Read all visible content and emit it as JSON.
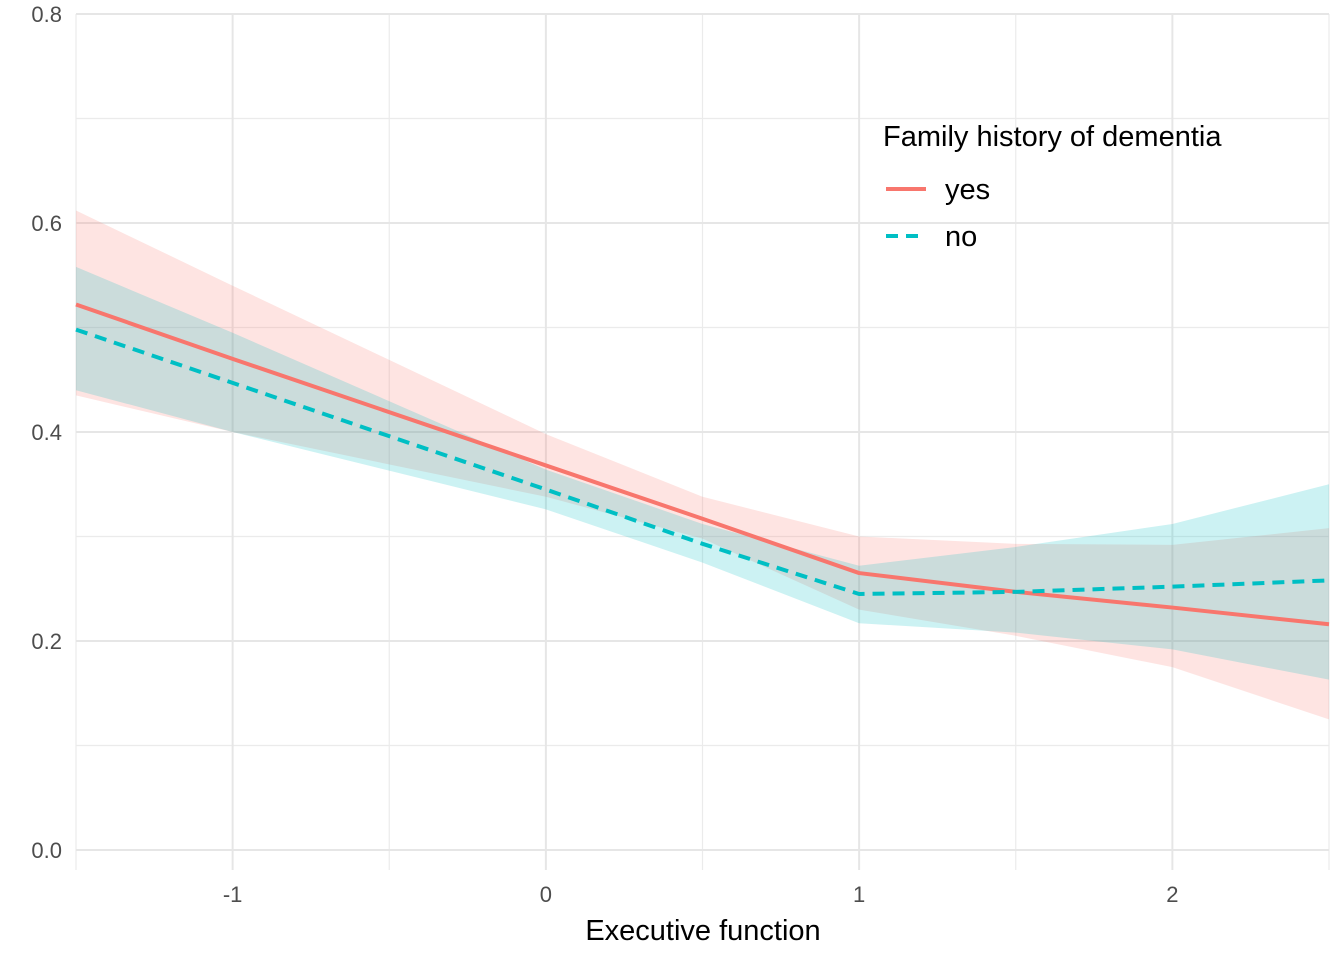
{
  "chart_data": {
    "type": "line",
    "title": "",
    "xlabel": "Executive function",
    "ylabel": "",
    "xlim": [
      -1.5,
      2.5
    ],
    "ylim": [
      0.0,
      0.8
    ],
    "x_ticks": [
      -1,
      0,
      1,
      2
    ],
    "y_ticks": [
      0.0,
      0.2,
      0.4,
      0.6,
      0.8
    ],
    "x_tick_labels": [
      "-1",
      "0",
      "1",
      "2"
    ],
    "y_tick_labels": [
      "0.0",
      "0.2",
      "0.4",
      "0.6",
      "0.8"
    ],
    "grid": true,
    "legend": {
      "title": "Family history of dementia",
      "placement": "top-right"
    },
    "x": [
      -1.5,
      -1.0,
      0.0,
      0.5,
      1.0,
      1.5,
      2.0,
      2.5
    ],
    "series": [
      {
        "name": "yes",
        "color": "#F8766D",
        "line_style": "solid",
        "values": [
          0.522,
          0.47,
          0.368,
          0.317,
          0.265,
          0.247,
          0.232,
          0.216
        ],
        "lower": [
          0.435,
          0.4,
          0.338,
          0.298,
          0.23,
          0.205,
          0.175,
          0.125
        ],
        "upper": [
          0.612,
          0.54,
          0.398,
          0.338,
          0.3,
          0.293,
          0.292,
          0.308
        ]
      },
      {
        "name": "no",
        "color": "#00BFC4",
        "line_style": "dashed",
        "values": [
          0.498,
          0.447,
          0.345,
          0.293,
          0.245,
          0.247,
          0.252,
          0.258
        ],
        "lower": [
          0.44,
          0.4,
          0.326,
          0.275,
          0.217,
          0.208,
          0.192,
          0.163
        ],
        "upper": [
          0.558,
          0.495,
          0.364,
          0.312,
          0.272,
          0.29,
          0.312,
          0.35
        ]
      }
    ]
  }
}
